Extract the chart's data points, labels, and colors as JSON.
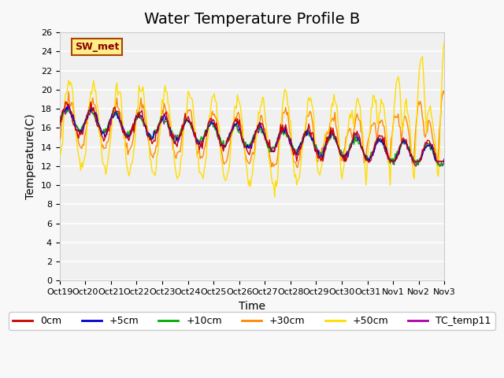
{
  "title": "Water Temperature Profile B",
  "xlabel": "Time",
  "ylabel": "Temperature(C)",
  "ylim": [
    0,
    26
  ],
  "yticks": [
    0,
    2,
    4,
    6,
    8,
    10,
    12,
    14,
    16,
    18,
    20,
    22,
    24,
    26
  ],
  "xtick_labels": [
    "Oct 19",
    "Oct 20",
    "Oct 21",
    "Oct 22",
    "Oct 23",
    "Oct 24",
    "Oct 25",
    "Oct 26",
    "Oct 27",
    "Oct 28",
    "Oct 29",
    "Oct 30",
    "Oct 31",
    "Nov 1",
    "Nov 2",
    "Nov 3"
  ],
  "series_colors": {
    "0cm": "#cc0000",
    "+5cm": "#0000cc",
    "+10cm": "#00aa00",
    "+30cm": "#ff8800",
    "+50cm": "#ffdd00",
    "TC_temp11": "#aa00aa"
  },
  "sw_met_box_color": "#ffee88",
  "sw_met_border_color": "#aa4400",
  "background_color": "#e8e8e8",
  "plot_bg_color": "#f0f0f0",
  "grid_color": "#ffffff",
  "title_fontsize": 14,
  "axis_label_fontsize": 10,
  "tick_fontsize": 8,
  "legend_fontsize": 9
}
